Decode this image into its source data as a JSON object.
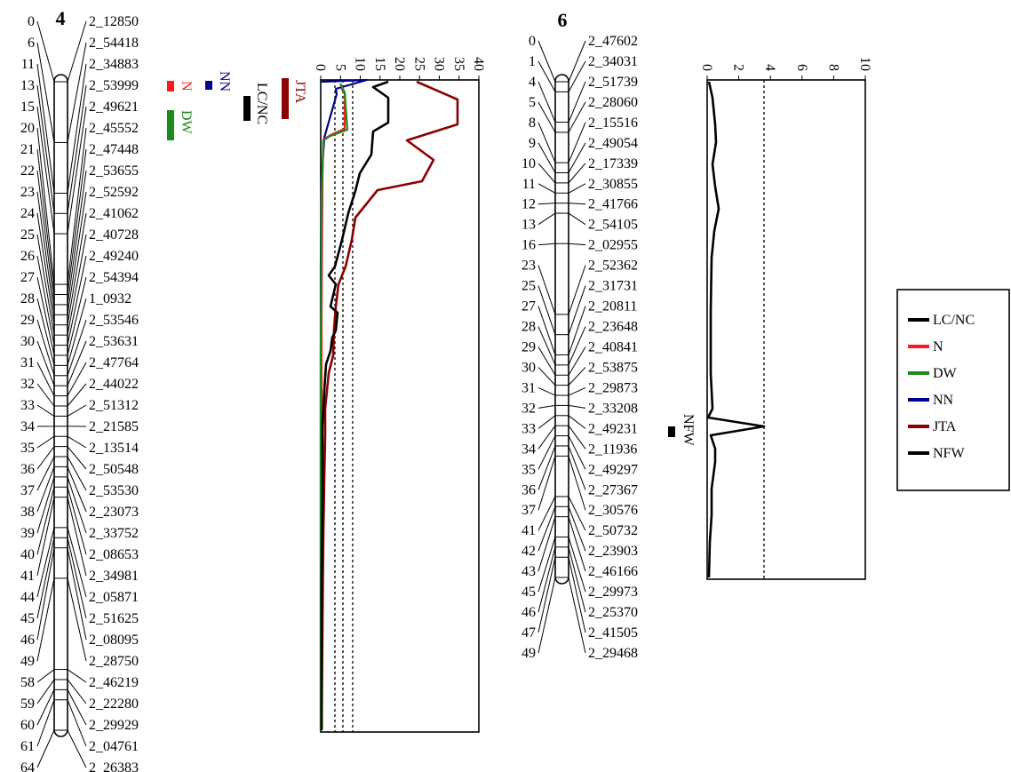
{
  "figure": {
    "colors": {
      "LC/NC": "#000000",
      "N": "#ff1a1a",
      "DW": "#1a8a1a",
      "NN": "#00008b",
      "JTA": "#8b0000",
      "NFW": "#000000"
    },
    "legend": {
      "placement": "right",
      "items": [
        "LC/NC",
        "N",
        "DW",
        "NN",
        "JTA",
        "NFW"
      ]
    },
    "chr4": {
      "title": "4",
      "positions": [
        "0",
        "6",
        "11",
        "13",
        "15",
        "20",
        "21",
        "22",
        "23",
        "24",
        "25",
        "26",
        "27",
        "28",
        "29",
        "30",
        "31",
        "32",
        "33",
        "34",
        "35",
        "36",
        "37",
        "38",
        "39",
        "40",
        "41",
        "44",
        "45",
        "46",
        "49",
        "58",
        "59",
        "60",
        "61",
        "64"
      ],
      "markers": [
        "2_12850",
        "2_54418",
        "2_34883",
        "2_53999",
        "2_49621",
        "2_45552",
        "2_47448",
        "2_53655",
        "2_52592",
        "2_41062",
        "2_40728",
        "2_49240",
        "2_54394",
        "1_0932",
        "2_53546",
        "2_53631",
        "2_47764",
        "2_44022",
        "2_51312",
        "2_21585",
        "2_13514",
        "2_50548",
        "2_53530",
        "2_23073",
        "2_33752",
        "2_08653",
        "2_34981",
        "2_05871",
        "2_51625",
        "2_08095",
        "2_28750",
        "2_46219",
        "2_22280",
        "2_29929",
        "2_04761",
        "2_26383"
      ],
      "qtl_bars": [
        {
          "label": "N"
        },
        {
          "label": "NN"
        },
        {
          "label": "DW"
        },
        {
          "label": "LC/NC"
        },
        {
          "label": "JTA"
        }
      ],
      "plot": {
        "xticks": [
          "0",
          "5",
          "10",
          "15",
          "20",
          "25",
          "30",
          "35",
          "40"
        ],
        "xlim": [
          0,
          40
        ]
      }
    },
    "chr6": {
      "title": "6",
      "positions": [
        "0",
        "1",
        "4",
        "5",
        "8",
        "9",
        "10",
        "11",
        "12",
        "13",
        "16",
        "23",
        "25",
        "27",
        "28",
        "29",
        "30",
        "31",
        "32",
        "33",
        "34",
        "35",
        "36",
        "37",
        "41",
        "42",
        "43",
        "45",
        "46",
        "47",
        "49"
      ],
      "markers": [
        "2_47602",
        "2_34031",
        "2_51739",
        "2_28060",
        "2_15516",
        "2_49054",
        "2_17339",
        "2_30855",
        "2_41766",
        "2_54105",
        "2_02955",
        "2_52362",
        "2_31731",
        "2_20811",
        "2_23648",
        "2_40841",
        "2_53875",
        "2_29873",
        "2_33208",
        "2_49231",
        "2_11936",
        "2_49297",
        "2_27367",
        "2_30576",
        "2_50732",
        "2_23903",
        "2_46166",
        "2_29973",
        "2_25370",
        "2_41505",
        "2_29468"
      ],
      "qtl_bars": [
        {
          "label": "NFW"
        }
      ],
      "plot": {
        "xticks": [
          "0",
          "2",
          "4",
          "6",
          "8",
          "10"
        ],
        "xlim": [
          0,
          10
        ]
      }
    }
  }
}
